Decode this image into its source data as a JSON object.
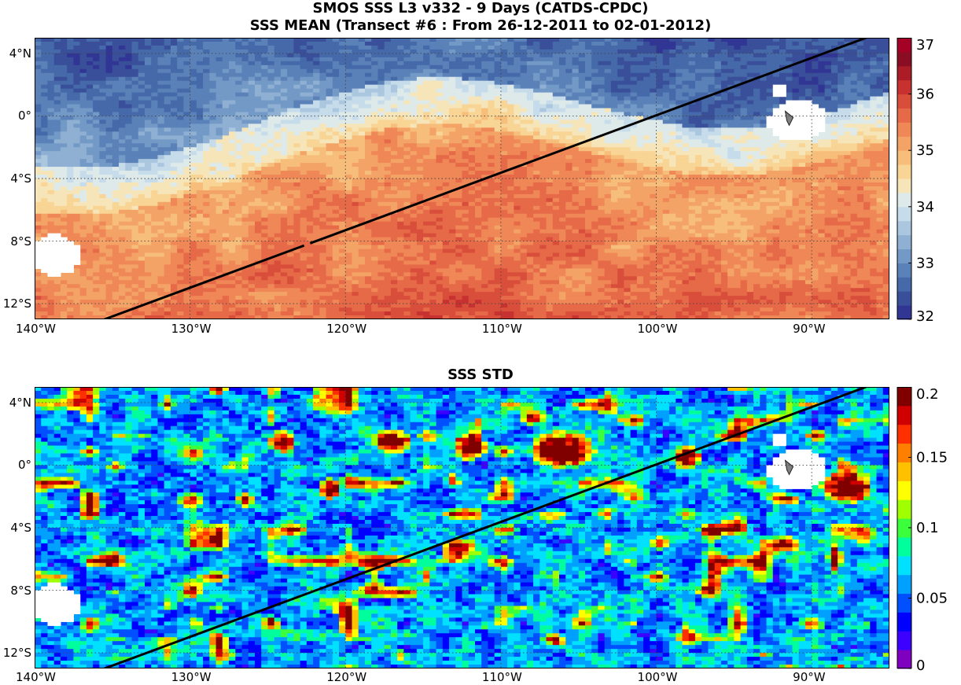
{
  "title_line1": "SMOS SSS L3 v332 - 9 Days (CATDS-CPDC)",
  "title_line2": "SSS MEAN (Transect #6 : From 26-12-2011 to 02-01-2012)",
  "panel2_title": "SSS STD",
  "x_ticks": [
    {
      "lon": -140,
      "label": "140°W"
    },
    {
      "lon": -130,
      "label": "130°W"
    },
    {
      "lon": -120,
      "label": "120°W"
    },
    {
      "lon": -110,
      "label": "110°W"
    },
    {
      "lon": -100,
      "label": "100°W"
    },
    {
      "lon": -90,
      "label": "90°W"
    }
  ],
  "y_ticks": [
    {
      "lat": 4,
      "label": "4°N"
    },
    {
      "lat": 0,
      "label": "0°"
    },
    {
      "lat": -4,
      "label": "4°S"
    },
    {
      "lat": -8,
      "label": "8°S"
    },
    {
      "lat": -12,
      "label": "12°S"
    }
  ],
  "lon_range": [
    -140,
    -85
  ],
  "lat_range": [
    -13,
    5
  ],
  "transect": {
    "start": {
      "lon": -135.5,
      "lat": -13
    },
    "end": {
      "lon": -86.5,
      "lat": 5
    }
  },
  "mean_colorbar": {
    "min": 32,
    "max": 37,
    "ticks": [
      "32",
      "33",
      "34",
      "35",
      "36",
      "37"
    ],
    "palette": [
      "#313695",
      "#3a4f9a",
      "#4569a9",
      "#5a81b8",
      "#7399c6",
      "#8fb0d3",
      "#abc6df",
      "#c6dceb",
      "#deeaea",
      "#f6e5b8",
      "#f8d495",
      "#f7be7b",
      "#f4a366",
      "#ef8757",
      "#e66a48",
      "#d94e3b",
      "#c73231",
      "#ac1c27",
      "#8b0d23",
      "#a50026"
    ]
  },
  "std_colorbar": {
    "min": 0,
    "max": 0.2,
    "ticks": [
      "0",
      "0.05",
      "0.1",
      "0.15",
      "0.2"
    ],
    "palette": [
      "#7f00bf",
      "#3b00ff",
      "#0000ff",
      "#0050ff",
      "#00a0ff",
      "#00e0ff",
      "#00ff9c",
      "#3cff3c",
      "#a0ff00",
      "#ffff00",
      "#ffc000",
      "#ff8000",
      "#ff3000",
      "#d00000",
      "#800000"
    ]
  },
  "colors": {
    "transect_line": "#000000",
    "grid": "#444444",
    "land": "#ffffff",
    "island": "#808080"
  }
}
